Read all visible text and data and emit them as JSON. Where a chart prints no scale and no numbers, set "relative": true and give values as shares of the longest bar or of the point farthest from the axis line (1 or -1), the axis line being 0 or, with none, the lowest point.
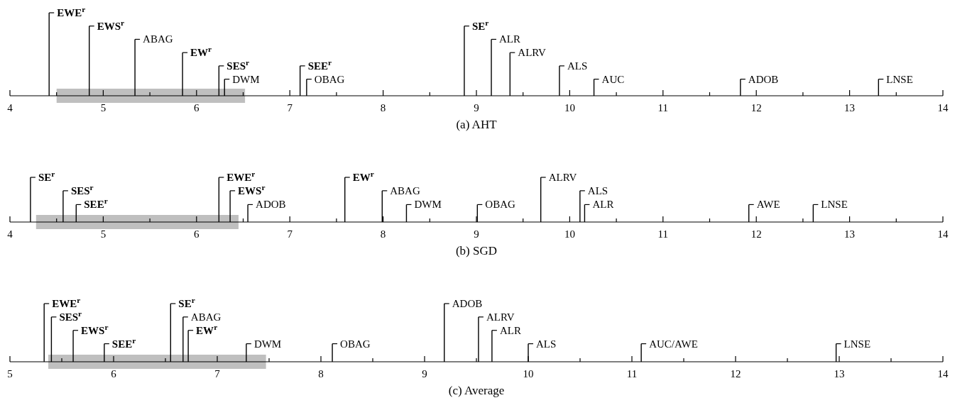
{
  "chart_data": [
    {
      "type": "bar",
      "relative": true,
      "xlabel": "(a) AHT",
      "xlim": [
        4,
        14
      ],
      "xticks": [
        4,
        {
          "value": 4.5,
          "label": null
        },
        5,
        {
          "value": 5.5,
          "label": null
        },
        6,
        {
          "value": 6.5,
          "label": null
        },
        7,
        {
          "value": 7.5,
          "label": null
        },
        8,
        {
          "value": 8.5,
          "label": null
        },
        9,
        {
          "value": 9.5,
          "label": null
        },
        10,
        {
          "value": 10.5,
          "label": null
        },
        11,
        {
          "value": 11.5,
          "label": null
        },
        12,
        {
          "value": 12.5,
          "label": null
        },
        13,
        {
          "value": 13.5,
          "label": null
        },
        14
      ],
      "series": [
        {
          "color": "#000000",
          "x": [
            4.42,
            4.85,
            5.85,
            6.24,
            7.11,
            8.87
          ],
          "values": [
            1,
            0.84,
            0.52,
            0.36,
            0.36,
            0.84
          ]
        },
        {
          "color": "#000000",
          "x": [
            5.34,
            6.3,
            7.18,
            9.16,
            9.36,
            9.89,
            10.26,
            11.83,
            13.31
          ],
          "values": [
            0.68,
            0.2,
            0.2,
            0.68,
            0.52,
            0.36,
            0.2,
            0.2,
            0.2
          ]
        }
      ],
      "bands": [
        {
          "axis": "x",
          "from": 4.5,
          "to": 6.52,
          "color": "#bfbfbf"
        }
      ],
      "annotations": [
        "EWE$^{r}$",
        "EWS$^{r}$",
        "EW$^{r}$",
        "SES$^{r}$",
        "SEE$^{r}$",
        "SE$^{r}$",
        "ABAG",
        "DWM",
        "OBAG",
        "ALR",
        "ALRV",
        "ALS",
        "AUC",
        "ADOB",
        "LNSE"
      ]
    },
    {
      "type": "bar",
      "relative": true,
      "xlabel": "(b) SGD",
      "xlim": [
        4,
        14
      ],
      "xticks": [
        4,
        {
          "value": 4.5,
          "label": null
        },
        5,
        {
          "value": 5.5,
          "label": null
        },
        6,
        {
          "value": 6.5,
          "label": null
        },
        7,
        {
          "value": 7.5,
          "label": null
        },
        8,
        {
          "value": 8.5,
          "label": null
        },
        9,
        {
          "value": 9.5,
          "label": null
        },
        10,
        {
          "value": 10.5,
          "label": null
        },
        11,
        {
          "value": 11.5,
          "label": null
        },
        12,
        {
          "value": 12.5,
          "label": null
        },
        13,
        {
          "value": 13.5,
          "label": null
        },
        14
      ],
      "series": [
        {
          "color": "#000000",
          "x": [
            4.22,
            4.57,
            4.71,
            6.24,
            6.36,
            7.59
          ],
          "values": [
            1,
            0.7,
            0.39,
            1,
            0.7,
            1
          ]
        },
        {
          "color": "#000000",
          "x": [
            6.55,
            7.99,
            8.25,
            9.01,
            9.69,
            10.11,
            10.16,
            11.92,
            12.61
          ],
          "values": [
            0.39,
            0.7,
            0.39,
            0.39,
            1,
            0.7,
            0.39,
            0.39,
            0.39
          ]
        }
      ],
      "bands": [
        {
          "axis": "x",
          "from": 4.28,
          "to": 6.45,
          "color": "#bfbfbf"
        }
      ],
      "annotations": [
        "SE$^{r}$",
        "SES$^{r}$",
        "SEE$^{r}$",
        "EWE$^{r}$",
        "EWS$^{r}$",
        "EW$^{r}$",
        "ADOB",
        "ABAG",
        "DWM",
        "OBAG",
        "ALRV",
        "ALS",
        "ALR",
        "AWE",
        "LNSE"
      ]
    },
    {
      "type": "bar",
      "relative": true,
      "xlabel": "(c) Average",
      "xlim": [
        5,
        14
      ],
      "xticks": [
        5,
        {
          "value": 5.5,
          "label": null
        },
        6,
        {
          "value": 6.5,
          "label": null
        },
        7,
        {
          "value": 7.5,
          "label": null
        },
        8,
        {
          "value": 8.5,
          "label": null
        },
        9,
        {
          "value": 9.5,
          "label": null
        },
        10,
        {
          "value": 10.5,
          "label": null
        },
        11,
        {
          "value": 11.5,
          "label": null
        },
        12,
        {
          "value": 12.5,
          "label": null
        },
        13,
        {
          "value": 13.5,
          "label": null
        },
        14
      ],
      "series": [
        {
          "color": "#000000",
          "x": [
            5.33,
            5.4,
            5.61,
            5.91,
            6.55,
            6.72
          ],
          "values": [
            1,
            0.77,
            0.54,
            0.31,
            1,
            0.54
          ]
        },
        {
          "color": "#000000",
          "x": [
            6.67,
            7.28,
            8.11,
            9.19,
            9.52,
            9.65,
            10.0,
            11.09,
            12.97
          ],
          "values": [
            0.77,
            0.31,
            0.31,
            1,
            0.77,
            0.54,
            0.31,
            0.31,
            0.31
          ]
        }
      ],
      "bands": [
        {
          "axis": "x",
          "from": 5.37,
          "to": 7.47,
          "color": "#bfbfbf"
        }
      ],
      "annotations": [
        "EWE$^{r}$",
        "SES$^{r}$",
        "EWS$^{r}$",
        "SEE$^{r}$",
        "SE$^{r}$",
        "EW$^{r}$",
        "ABAG",
        "DWM",
        "OBAG",
        "ADOB",
        "ALRV",
        "ALR",
        "ALS",
        "AUC/AWE",
        "LNSE"
      ]
    }
  ]
}
